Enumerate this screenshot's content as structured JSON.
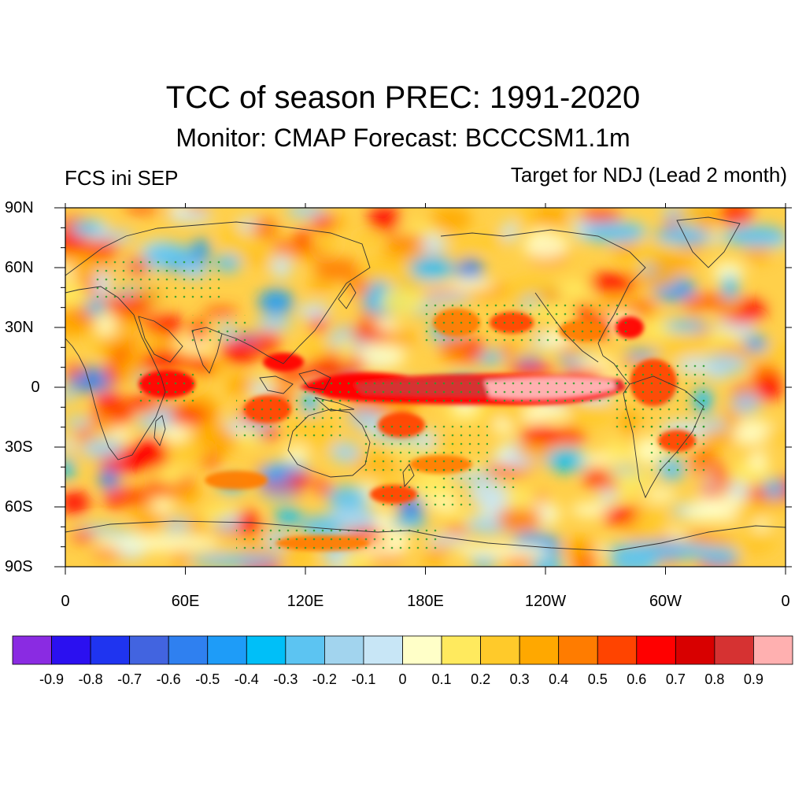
{
  "title": "TCC of season PREC: 1991-2020",
  "subtitle": "Monitor: CMAP   Forecast: BCCCSM1.1m",
  "left_label": "FCS ini SEP",
  "right_label": "Target for NDJ (Lead 2 month)",
  "lat_labels": [
    "90N",
    "60N",
    "30N",
    "0",
    "30S",
    "60S",
    "90S"
  ],
  "lon_labels": [
    "0",
    "60E",
    "120E",
    "180E",
    "120W",
    "60W",
    "0"
  ],
  "colorbar": {
    "colors": [
      "#8a2be2",
      "#2b10f0",
      "#1f34f0",
      "#4264e0",
      "#2f80f0",
      "#1e9cf8",
      "#00bff8",
      "#5cc4f2",
      "#a2d4ee",
      "#c8e6f6",
      "#ffffc8",
      "#ffea5e",
      "#ffca2a",
      "#ffa800",
      "#ff7c00",
      "#ff4400",
      "#ff0000",
      "#d80000",
      "#d63232",
      "#ffb0b0"
    ],
    "labels": [
      "-0.9",
      "-0.8",
      "-0.7",
      "-0.6",
      "-0.5",
      "-0.4",
      "-0.3",
      "-0.2",
      "-0.1",
      "0",
      "0.1",
      "0.2",
      "0.3",
      "0.4",
      "0.5",
      "0.6",
      "0.7",
      "0.8",
      "0.9"
    ]
  }
}
